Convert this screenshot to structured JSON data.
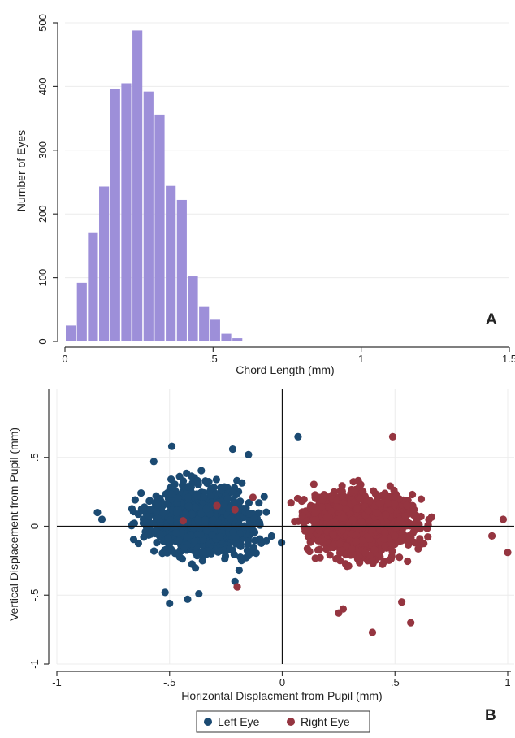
{
  "chart_data": [
    {
      "type": "bar",
      "panel_label": "A",
      "xlabel": "Chord Length (mm)",
      "ylabel": "Number of Eyes",
      "xlim": [
        0,
        1.5
      ],
      "ylim": [
        0,
        500
      ],
      "x_ticks": [
        0,
        0.5,
        1,
        1.5
      ],
      "x_tick_labels": [
        "0",
        ".5",
        "1",
        "1.5"
      ],
      "y_ticks": [
        0,
        100,
        200,
        300,
        400,
        500
      ],
      "y_tick_labels": [
        "0",
        "100",
        "200",
        "300",
        "400",
        "500"
      ],
      "bin_width": 0.0375,
      "bin_starts": [
        0.0,
        0.0375,
        0.075,
        0.1125,
        0.15,
        0.1875,
        0.225,
        0.2625,
        0.3,
        0.3375,
        0.375,
        0.4125,
        0.45,
        0.4875,
        0.525,
        0.5625
      ],
      "values": [
        25,
        92,
        170,
        243,
        396,
        405,
        488,
        392,
        356,
        244,
        222,
        102,
        54,
        34,
        12,
        5
      ],
      "bar_color": "#9d8fd9",
      "grid": true
    },
    {
      "type": "scatter",
      "panel_label": "B",
      "xlabel": "Horizontal Displacment from Pupil (mm)",
      "ylabel": "Vertical Displacement from Pupil (mm)",
      "xlim": [
        -1,
        1
      ],
      "ylim": [
        -1,
        1
      ],
      "x_ticks": [
        -1,
        -0.5,
        0,
        0.5,
        1
      ],
      "x_tick_labels": [
        "-1",
        "-.5",
        "0",
        ".5",
        "1"
      ],
      "y_ticks": [
        -1,
        -0.5,
        0,
        0.5
      ],
      "y_tick_labels": [
        "-1",
        "-.5",
        "0",
        ".5"
      ],
      "grid": true,
      "reference_lines": {
        "x": 0,
        "y": 0
      },
      "legend_position": "bottom",
      "series": [
        {
          "name": "Left Eye",
          "color": "#1b4a72",
          "x_range": [
            -0.83,
            0.05
          ],
          "y_range": [
            -0.56,
            0.58
          ],
          "outliers": [
            {
              "x": -0.57,
              "y": 0.47
            },
            {
              "x": -0.49,
              "y": 0.58
            },
            {
              "x": -0.22,
              "y": 0.56
            },
            {
              "x": -0.15,
              "y": 0.52
            },
            {
              "x": 0.07,
              "y": 0.65
            },
            {
              "x": -0.82,
              "y": 0.1
            },
            {
              "x": -0.8,
              "y": 0.05
            },
            {
              "x": -0.5,
              "y": -0.56
            },
            {
              "x": -0.42,
              "y": -0.53
            },
            {
              "x": -0.37,
              "y": -0.49
            },
            {
              "x": -0.21,
              "y": -0.4
            },
            {
              "x": -0.52,
              "y": -0.48
            }
          ],
          "marked_points": [
            {
              "x": -0.44,
              "y": 0.04
            },
            {
              "x": -0.29,
              "y": 0.15
            },
            {
              "x": -0.21,
              "y": 0.12
            },
            {
              "x": -0.13,
              "y": 0.21
            },
            {
              "x": -0.1,
              "y": -0.03
            },
            {
              "x": -0.13,
              "y": -0.23
            }
          ]
        },
        {
          "name": "Right Eye",
          "color": "#953540",
          "x_range": [
            -0.05,
            0.84
          ],
          "y_range": [
            -0.77,
            0.65
          ],
          "outliers": [
            {
              "x": 0.49,
              "y": 0.65
            },
            {
              "x": 0.4,
              "y": -0.77
            },
            {
              "x": 0.57,
              "y": -0.7
            },
            {
              "x": 0.27,
              "y": -0.6
            },
            {
              "x": 0.25,
              "y": -0.63
            },
            {
              "x": 1.0,
              "y": -0.19
            },
            {
              "x": 0.98,
              "y": 0.05
            },
            {
              "x": 0.93,
              "y": -0.07
            },
            {
              "x": -0.2,
              "y": -0.44
            },
            {
              "x": 0.53,
              "y": -0.55
            }
          ],
          "marked_points": [
            {
              "x": -0.44,
              "y": 0.04
            },
            {
              "x": -0.29,
              "y": 0.15
            },
            {
              "x": -0.21,
              "y": 0.12
            },
            {
              "x": -0.13,
              "y": 0.21
            },
            {
              "x": -0.2,
              "y": -0.44
            }
          ]
        }
      ]
    }
  ]
}
